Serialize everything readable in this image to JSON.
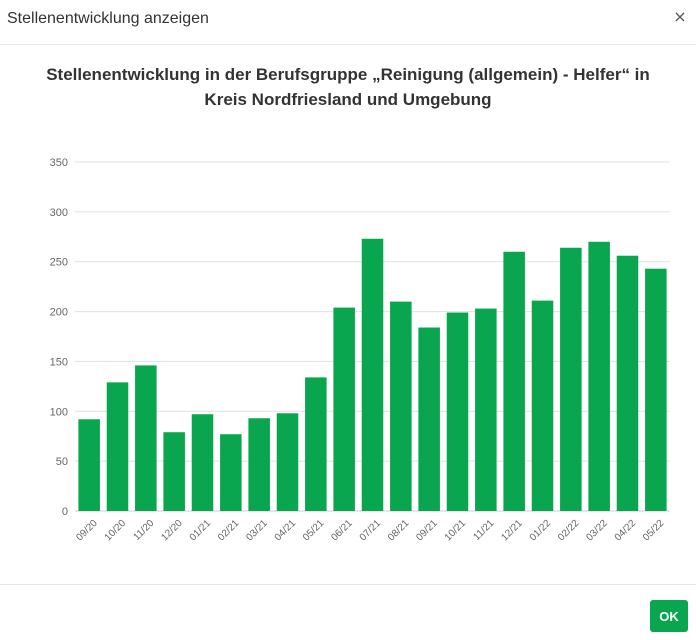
{
  "dialog": {
    "title": "Stellenentwicklung anzeigen",
    "close_label": "×",
    "ok_label": "OK"
  },
  "colors": {
    "bar": "#0aa64f",
    "grid": "#e0e0e0",
    "axis_text": "#666666"
  },
  "icons": {
    "close": "close-icon"
  },
  "chart_data": {
    "type": "bar",
    "title": "Stellenentwicklung in der Berufsgruppe „Reinigung (allgemein) - Helfer“ in Kreis Nordfriesland und Umgebung",
    "xlabel": "",
    "ylabel": "",
    "ylim": [
      0,
      350
    ],
    "yticks": [
      0,
      50,
      100,
      150,
      200,
      250,
      300,
      350
    ],
    "grid": true,
    "legend": "none",
    "categories": [
      "09/20",
      "10/20",
      "11/20",
      "12/20",
      "01/21",
      "02/21",
      "03/21",
      "04/21",
      "05/21",
      "06/21",
      "07/21",
      "08/21",
      "09/21",
      "10/21",
      "11/21",
      "12/21",
      "01/22",
      "02/22",
      "03/22",
      "04/22",
      "05/22"
    ],
    "values": [
      92,
      129,
      146,
      79,
      97,
      77,
      93,
      98,
      134,
      204,
      273,
      210,
      184,
      199,
      203,
      260,
      211,
      264,
      270,
      256,
      243
    ]
  }
}
